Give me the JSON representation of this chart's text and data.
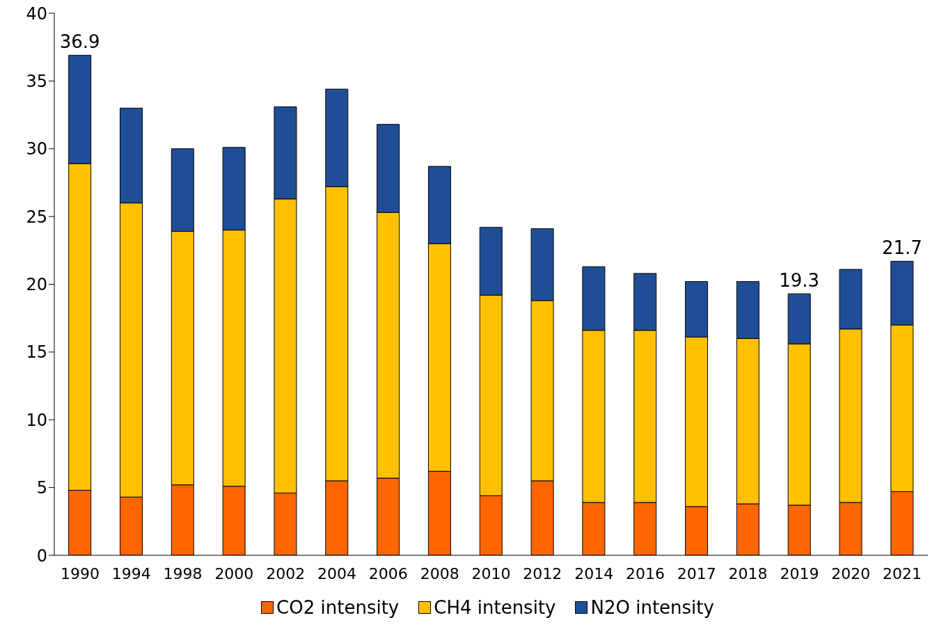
{
  "chart_data": {
    "type": "bar",
    "stacked": true,
    "categories": [
      "1990",
      "1994",
      "1998",
      "2000",
      "2002",
      "2004",
      "2006",
      "2008",
      "2010",
      "2012",
      "2014",
      "2016",
      "2017",
      "2018",
      "2019",
      "2020",
      "2021"
    ],
    "series": [
      {
        "name": "CO2 intensity",
        "color": "#ff6600",
        "values": [
          4.8,
          4.3,
          5.2,
          5.1,
          4.6,
          5.5,
          5.7,
          6.2,
          4.4,
          5.5,
          3.9,
          3.9,
          3.6,
          3.8,
          3.7,
          3.9,
          4.7
        ]
      },
      {
        "name": "CH4 intensity",
        "color": "#ffc000",
        "values": [
          24.1,
          21.7,
          18.7,
          18.9,
          21.7,
          21.7,
          19.6,
          16.8,
          14.8,
          13.3,
          12.7,
          12.7,
          12.5,
          12.2,
          11.9,
          12.8,
          12.3
        ]
      },
      {
        "name": "N2O intensity",
        "color": "#1f4e96",
        "values": [
          8.0,
          7.0,
          6.1,
          6.1,
          6.8,
          7.2,
          6.5,
          5.7,
          5.0,
          5.3,
          4.7,
          4.2,
          4.1,
          4.2,
          3.7,
          4.4,
          4.7
        ]
      }
    ],
    "totals": [
      "36.9",
      null,
      null,
      null,
      null,
      null,
      null,
      null,
      null,
      null,
      null,
      null,
      null,
      null,
      "19.3",
      null,
      "21.7"
    ],
    "ylim": [
      0,
      40
    ],
    "yticks": [
      0,
      5,
      10,
      15,
      20,
      25,
      30,
      35,
      40
    ],
    "grid": false,
    "legend": "bottom"
  }
}
